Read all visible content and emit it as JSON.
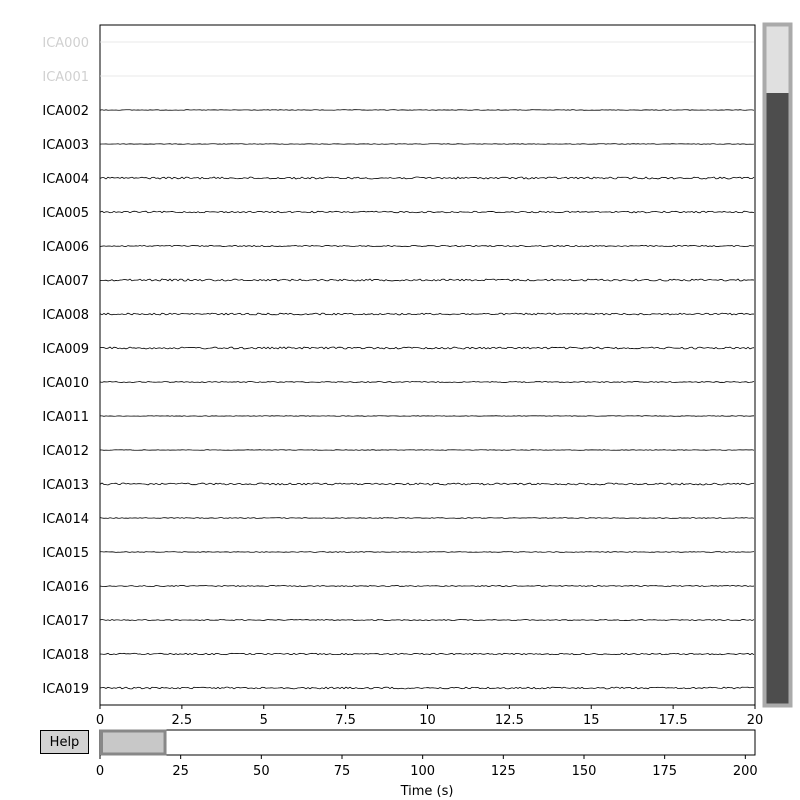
{
  "colors": {
    "trace": "#000000",
    "bad_channel": "#e0e0e0",
    "scrollbar_thumb": "#4d4d4d",
    "scrollbar_track_border": "#aaaaaa",
    "time_window": "#c8c8c8",
    "button_bg": "#d3d3d3"
  },
  "help_button": {
    "label": "Help"
  },
  "channels": [
    {
      "name": "ICA000",
      "bad": true
    },
    {
      "name": "ICA001",
      "bad": true
    },
    {
      "name": "ICA002",
      "bad": false
    },
    {
      "name": "ICA003",
      "bad": false
    },
    {
      "name": "ICA004",
      "bad": false
    },
    {
      "name": "ICA005",
      "bad": false
    },
    {
      "name": "ICA006",
      "bad": false
    },
    {
      "name": "ICA007",
      "bad": false
    },
    {
      "name": "ICA008",
      "bad": false
    },
    {
      "name": "ICA009",
      "bad": false
    },
    {
      "name": "ICA010",
      "bad": false
    },
    {
      "name": "ICA011",
      "bad": false
    },
    {
      "name": "ICA012",
      "bad": false
    },
    {
      "name": "ICA013",
      "bad": false
    },
    {
      "name": "ICA014",
      "bad": false
    },
    {
      "name": "ICA015",
      "bad": false
    },
    {
      "name": "ICA016",
      "bad": false
    },
    {
      "name": "ICA017",
      "bad": false
    },
    {
      "name": "ICA018",
      "bad": false
    },
    {
      "name": "ICA019",
      "bad": false
    }
  ],
  "trace_noise_levels": [
    0,
    0,
    0.3,
    0.3,
    1.0,
    0.8,
    0.6,
    1.0,
    0.9,
    1.0,
    0.5,
    0.3,
    0.3,
    1.0,
    0.4,
    0.4,
    0.5,
    0.5,
    0.7,
    0.9
  ],
  "main_axis": {
    "xlim": [
      0,
      20
    ],
    "xticks": [
      "0",
      "2.5",
      "5",
      "7.5",
      "10",
      "12.5",
      "15",
      "17.5",
      "20"
    ],
    "xtick_values": [
      0,
      2.5,
      5,
      7.5,
      10,
      12.5,
      15,
      17.5,
      20
    ]
  },
  "overview_axis": {
    "xlabel": "Time (s)",
    "xlim": [
      0,
      203
    ],
    "xticks": [
      "0",
      "25",
      "50",
      "75",
      "100",
      "125",
      "150",
      "175",
      "200"
    ],
    "xtick_values": [
      0,
      25,
      50,
      75,
      100,
      125,
      150,
      175,
      200
    ],
    "window_start": 0,
    "window_end": 20
  },
  "channel_scrollbar": {
    "total_channels": 20,
    "visible_fraction": 1.0
  }
}
